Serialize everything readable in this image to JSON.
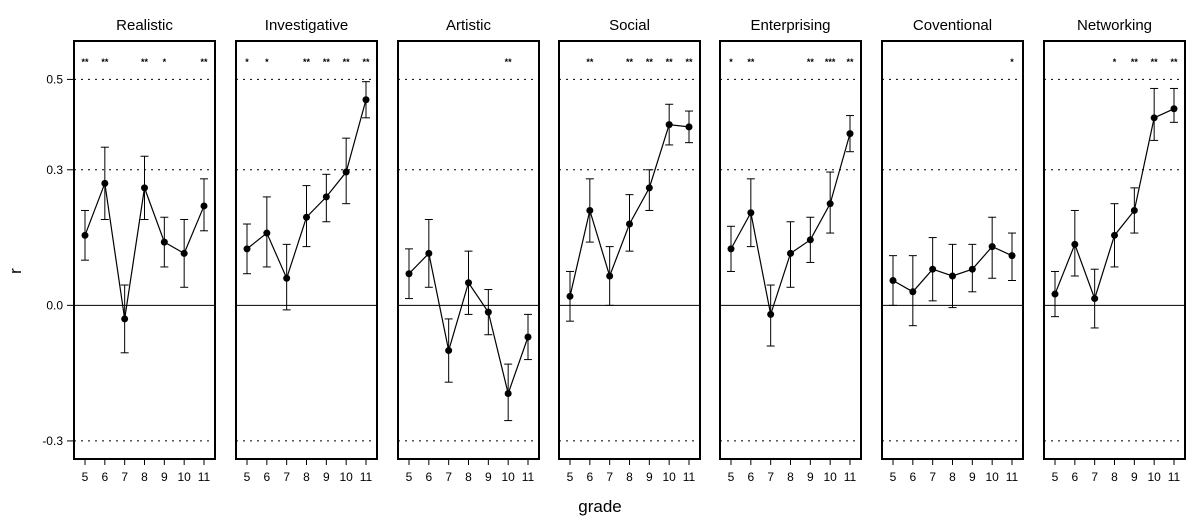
{
  "chart_data": {
    "type": "line",
    "xlabel": "grade",
    "ylabel": "r",
    "ylim": [
      -0.34,
      0.585
    ],
    "yticks": [
      {
        "value": 0.5,
        "label": "0.5"
      },
      {
        "value": 0.3,
        "label": "0.3"
      },
      {
        "value": 0.0,
        "label": "0.0"
      },
      {
        "value": -0.3,
        "label": "-0.3"
      }
    ],
    "reference_lines": {
      "dotted": [
        0.5,
        0.3,
        -0.3
      ],
      "solid": [
        0.0
      ]
    },
    "grades": [
      "5",
      "6",
      "7",
      "8",
      "9",
      "10",
      "11"
    ],
    "panels": [
      {
        "title": "Realistic",
        "values": [
          0.155,
          0.27,
          -0.03,
          0.26,
          0.14,
          0.115,
          0.22
        ],
        "lower": [
          0.1,
          0.19,
          -0.105,
          0.19,
          0.085,
          0.04,
          0.165
        ],
        "upper": [
          0.21,
          0.35,
          0.045,
          0.33,
          0.195,
          0.19,
          0.28
        ],
        "significance": [
          "**",
          "**",
          "",
          "**",
          "*",
          "",
          "**"
        ]
      },
      {
        "title": "Investigative",
        "values": [
          0.125,
          0.16,
          0.06,
          0.195,
          0.24,
          0.295,
          0.455
        ],
        "lower": [
          0.07,
          0.085,
          -0.01,
          0.13,
          0.185,
          0.225,
          0.415
        ],
        "upper": [
          0.18,
          0.24,
          0.135,
          0.265,
          0.29,
          0.37,
          0.495
        ],
        "significance": [
          "*",
          "*",
          "",
          "**",
          "**",
          "**",
          "**"
        ]
      },
      {
        "title": "Artistic",
        "values": [
          0.07,
          0.115,
          -0.1,
          0.05,
          -0.015,
          -0.195,
          -0.07
        ],
        "lower": [
          0.015,
          0.04,
          -0.17,
          -0.02,
          -0.065,
          -0.255,
          -0.12
        ],
        "upper": [
          0.125,
          0.19,
          -0.03,
          0.12,
          0.035,
          -0.13,
          -0.02
        ],
        "significance": [
          "",
          "",
          "",
          "",
          "",
          "**",
          ""
        ]
      },
      {
        "title": "Social",
        "values": [
          0.02,
          0.21,
          0.065,
          0.18,
          0.26,
          0.4,
          0.395
        ],
        "lower": [
          -0.035,
          0.14,
          0.0,
          0.12,
          0.21,
          0.355,
          0.36
        ],
        "upper": [
          0.075,
          0.28,
          0.13,
          0.245,
          0.3,
          0.445,
          0.43
        ],
        "significance": [
          "",
          "**",
          "",
          "**",
          "**",
          "**",
          "**"
        ]
      },
      {
        "title": "Enterprising",
        "values": [
          0.125,
          0.205,
          -0.02,
          0.115,
          0.145,
          0.225,
          0.38
        ],
        "lower": [
          0.075,
          0.13,
          -0.09,
          0.04,
          0.095,
          0.16,
          0.34
        ],
        "upper": [
          0.175,
          0.28,
          0.045,
          0.185,
          0.195,
          0.295,
          0.42
        ],
        "significance": [
          "*",
          "**",
          "",
          "",
          "**",
          "***",
          "**"
        ]
      },
      {
        "title": "Coventional",
        "values": [
          0.055,
          0.03,
          0.08,
          0.065,
          0.08,
          0.13,
          0.11
        ],
        "lower": [
          0.0,
          -0.045,
          0.01,
          -0.005,
          0.03,
          0.06,
          0.055
        ],
        "upper": [
          0.11,
          0.11,
          0.15,
          0.135,
          0.135,
          0.195,
          0.16
        ],
        "significance": [
          "",
          "",
          "",
          "",
          "",
          "",
          "*"
        ]
      },
      {
        "title": "Networking",
        "values": [
          0.025,
          0.135,
          0.015,
          0.155,
          0.21,
          0.415,
          0.435
        ],
        "lower": [
          -0.025,
          0.065,
          -0.05,
          0.085,
          0.16,
          0.365,
          0.405
        ],
        "upper": [
          0.075,
          0.21,
          0.08,
          0.225,
          0.26,
          0.48,
          0.48
        ],
        "significance": [
          "",
          "",
          "",
          "*",
          "**",
          "**",
          "**"
        ]
      }
    ]
  }
}
